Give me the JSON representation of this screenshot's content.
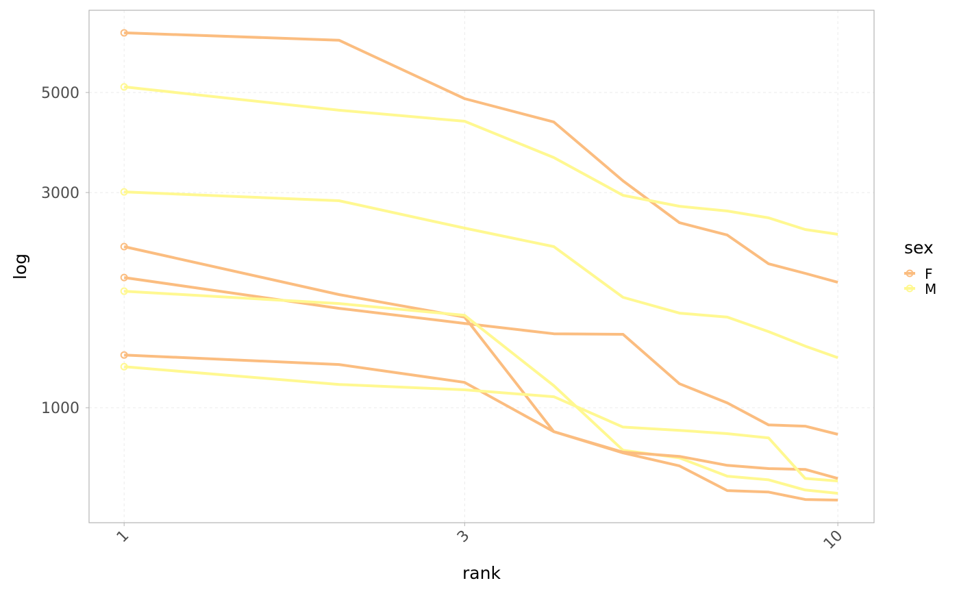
{
  "chart_data": {
    "type": "line",
    "x_label": "rank",
    "y_label": "log",
    "x": [
      1,
      2,
      3,
      4,
      5,
      6,
      7,
      8,
      9,
      10
    ],
    "xlog": true,
    "ylog": true,
    "xlim": [
      0.893,
      11.24
    ],
    "ylim": [
      556,
      7608
    ],
    "xticks": [
      1,
      3,
      10
    ],
    "yticks": [
      1000,
      3000,
      5000
    ],
    "grid": true,
    "legend_title": "sex",
    "legend_position": "right",
    "series": [
      {
        "name": "F",
        "color": "#fbbd80",
        "values": [
          6780,
          6530,
          4845,
          4300,
          3185,
          2572,
          2415,
          2085,
          1986,
          1897
        ]
      },
      {
        "name": "M",
        "color": "#fff891",
        "values": [
          5145,
          4567,
          4317,
          3587,
          2958,
          2797,
          2730,
          2636,
          2484,
          2424
        ]
      },
      {
        "name": "M",
        "color": "#fff891",
        "values": [
          3010,
          2877,
          2502,
          2276,
          1757,
          1621,
          1588,
          1475,
          1370,
          1291
        ]
      },
      {
        "name": "F",
        "color": "#fbbd80",
        "values": [
          2276,
          1782,
          1588,
          885,
          794,
          743,
          655,
          650,
          626,
          624
        ]
      },
      {
        "name": "F",
        "color": "#fbbd80",
        "values": [
          1944,
          1661,
          1538,
          1459,
          1455,
          1130,
          1025,
          916,
          910,
          873
        ]
      },
      {
        "name": "M",
        "color": "#fff891",
        "values": [
          1813,
          1702,
          1603,
          1119,
          805,
          774,
          705,
          692,
          657,
          646
        ]
      },
      {
        "name": "F",
        "color": "#fbbd80",
        "values": [
          1309,
          1247,
          1138,
          885,
          797,
          780,
          745,
          733,
          730,
          697
        ]
      },
      {
        "name": "M",
        "color": "#fff891",
        "values": [
          1233,
          1126,
          1096,
          1058,
          906,
          891,
          876,
          857,
          697,
          688
        ]
      }
    ]
  }
}
